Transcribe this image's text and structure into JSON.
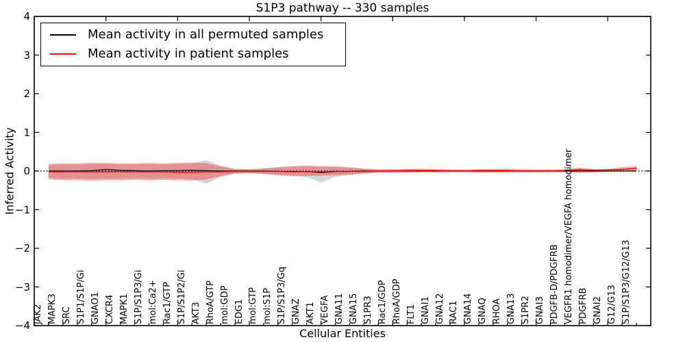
{
  "chart_data": {
    "type": "line",
    "title": "S1P3 pathway -- 330 samples",
    "xlabel": "Cellular Entities",
    "ylabel": "Inferred Activity",
    "ylim": [
      -4,
      4
    ],
    "xlim": [
      0,
      43
    ],
    "ytick_values": [
      4,
      3,
      2,
      1,
      0,
      -1,
      -2,
      -3,
      -4
    ],
    "ytick_labels": [
      "4",
      "3",
      "2",
      "1",
      "0",
      "−1",
      "−2",
      "−3",
      "−4"
    ],
    "xtick_major_values": [
      0,
      5,
      10,
      15,
      20,
      25,
      30,
      35,
      40
    ],
    "grid": false,
    "legend_position": "upper left",
    "background": "#ffffff",
    "zero_line": {
      "y": 0,
      "style": "dotted",
      "color": "#000000"
    },
    "entities": [
      "JAK2",
      "MAPK3",
      "SRC",
      "S1P1/S1P/Gi",
      "GNAO1",
      "CXCR4",
      "MAPK1",
      "S1P/S1P3/Gi",
      "mol:Ca2+",
      "Rac1/GTP",
      "S1P/S1P2/Gi",
      "AKT3",
      "RhoA/GTP",
      "mol:GDP",
      "EDG1",
      "mol:GTP",
      "mol:S1P",
      "S1P/S1P3/Gq",
      "GNAZ",
      "AKT1",
      "VEGFA",
      "GNA11",
      "GNA15",
      "S1PR3",
      "Rac1/GDP",
      "RhoA/GDP",
      "FLT1",
      "GNAI1",
      "GNA12",
      "RAC1",
      "GNA14",
      "GNAQ",
      "RHOA",
      "GNA13",
      "S1PR2",
      "GNAI3",
      "PDGFB-D/PDGFRB",
      "VEGFR1 homodimer/VEGFA homodimer",
      "PDGFRB",
      "GNAI2",
      "G12/G13",
      "S1P/S1P3/G12/G13"
    ],
    "legend": [
      {
        "label": "Mean activity in all permuted samples",
        "color": "#000000"
      },
      {
        "label": "Mean activity in patient samples",
        "color": "#ff0000"
      }
    ],
    "series": [
      {
        "name": "Mean activity in all permuted samples",
        "color": "#000000",
        "width": 1.1,
        "values": [
          0,
          0,
          0,
          0.01,
          0.04,
          0.02,
          0.01,
          0,
          0.01,
          0.01,
          0.02,
          0.01,
          0,
          0,
          0,
          0,
          -0.01,
          -0.01,
          -0.02,
          -0.04,
          -0.02,
          -0.01,
          0,
          0,
          0,
          0,
          0,
          0,
          0,
          0,
          0,
          0,
          0,
          0,
          0,
          0,
          0,
          0,
          0,
          0,
          0,
          0
        ]
      },
      {
        "name": "Mean activity in patient samples",
        "color": "#ff0000",
        "width": 1.5,
        "values": [
          -0.02,
          -0.02,
          -0.02,
          -0.02,
          -0.02,
          -0.02,
          -0.02,
          -0.02,
          -0.02,
          -0.03,
          -0.03,
          -0.02,
          -0.02,
          -0.01,
          -0.01,
          -0.01,
          -0.01,
          -0.02,
          -0.02,
          -0.02,
          -0.01,
          -0.01,
          -0.01,
          0,
          0,
          0.01,
          0.01,
          0.01,
          0,
          0,
          0.01,
          0.01,
          0.01,
          0,
          0,
          0,
          0.01,
          0.03,
          0.02,
          0.03,
          0.04,
          0.07
        ]
      }
    ],
    "bands": [
      {
        "name": "permuted samples spread",
        "color": "#999999",
        "opacity": 0.4,
        "upper": [
          0.15,
          0.17,
          0.17,
          0.18,
          0.18,
          0.17,
          0.17,
          0.18,
          0.17,
          0.18,
          0.2,
          0.28,
          0.14,
          0.06,
          0.05,
          0.07,
          0.09,
          0.11,
          0.12,
          0.1,
          0.1,
          0.08,
          0.06,
          0.05,
          0.05,
          0.05,
          0.04,
          0.04,
          0.04,
          0.04,
          0.05,
          0.06,
          0.06,
          0.05,
          0.04,
          0.04,
          0.04,
          0.06,
          0.04,
          0.03,
          0.03,
          0.04
        ],
        "lower": [
          -0.18,
          -0.2,
          -0.2,
          -0.21,
          -0.2,
          -0.2,
          -0.19,
          -0.2,
          -0.19,
          -0.2,
          -0.21,
          -0.33,
          -0.16,
          -0.07,
          -0.06,
          -0.08,
          -0.11,
          -0.14,
          -0.16,
          -0.3,
          -0.15,
          -0.1,
          -0.07,
          -0.05,
          -0.05,
          -0.05,
          -0.04,
          -0.04,
          -0.04,
          -0.04,
          -0.05,
          -0.05,
          -0.05,
          -0.04,
          -0.04,
          -0.04,
          -0.04,
          -0.05,
          -0.04,
          -0.03,
          -0.03,
          -0.03
        ]
      },
      {
        "name": "patient samples spread",
        "color": "#ff0000",
        "opacity": 0.32,
        "upper": [
          0.18,
          0.2,
          0.2,
          0.21,
          0.21,
          0.2,
          0.2,
          0.21,
          0.2,
          0.21,
          0.22,
          0.2,
          0.12,
          0.05,
          0.04,
          0.06,
          0.1,
          0.13,
          0.14,
          0.13,
          0.12,
          0.1,
          0.06,
          0.04,
          0.04,
          0.05,
          0.06,
          0.05,
          0.04,
          0.03,
          0.04,
          0.04,
          0.04,
          0.03,
          0.03,
          0.03,
          0.04,
          0.09,
          0.05,
          0.04,
          0.1,
          0.13
        ],
        "lower": [
          -0.22,
          -0.24,
          -0.24,
          -0.25,
          -0.24,
          -0.24,
          -0.23,
          -0.24,
          -0.23,
          -0.24,
          -0.25,
          -0.22,
          -0.13,
          -0.06,
          -0.05,
          -0.07,
          -0.1,
          -0.12,
          -0.13,
          -0.12,
          -0.11,
          -0.09,
          -0.06,
          -0.04,
          -0.04,
          -0.04,
          -0.03,
          -0.03,
          -0.03,
          -0.03,
          -0.03,
          -0.03,
          -0.03,
          -0.03,
          -0.03,
          -0.03,
          -0.03,
          -0.04,
          -0.03,
          -0.02,
          -0.01,
          0.01
        ]
      }
    ]
  }
}
